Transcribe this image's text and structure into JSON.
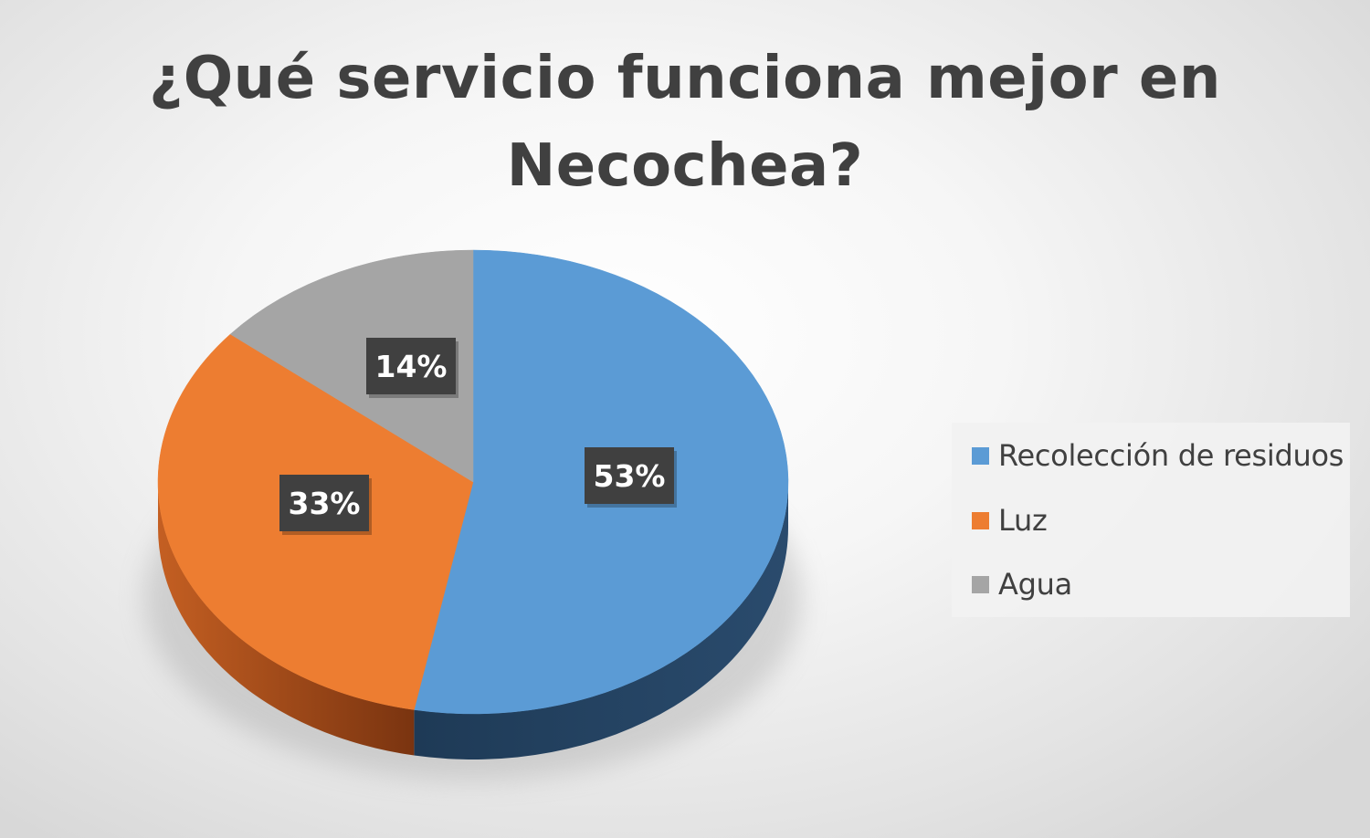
{
  "chart_data": {
    "type": "pie",
    "title": "¿Qué servicio funciona mejor en Necochea?",
    "title_lines": [
      "¿Qué servicio funciona mejor en",
      "Necochea?"
    ],
    "categories": [
      "Recolección de residuos",
      "Luz",
      "Agua"
    ],
    "values": [
      53,
      33,
      14
    ],
    "labels": [
      "53%",
      "33%",
      "14%"
    ],
    "colors": [
      "#5B9BD5",
      "#ED7D31",
      "#A5A5A5"
    ],
    "side_colors": [
      "#1F3D5C",
      "#B5561C",
      "#6E6E6E"
    ],
    "style": "3d",
    "legend_position": "right",
    "data_label_style": "dark-box"
  }
}
